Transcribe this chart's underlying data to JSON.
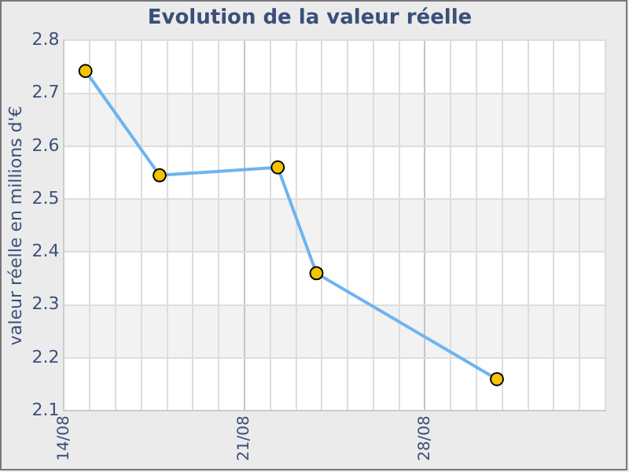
{
  "chart_data": {
    "type": "line",
    "title": "Evolution de la valeur réelle",
    "ylabel": "valeur réelle en millions d'€",
    "x": [
      "--08-14T20:00",
      "--08-17T17:00",
      "--08-22T07:00",
      "--08-23T19:00",
      "--08-30T19:00"
    ],
    "series": [
      {
        "color": "#6eb4f0",
        "values": [
          2.742,
          2.545,
          2.56,
          2.36,
          2.16
        ]
      }
    ],
    "xlim": [
      "--08-14",
      "--09-04"
    ],
    "xticks": [
      {
        "value": "--08-14",
        "label": "14/08"
      },
      {
        "value": "--08-15",
        "label": null
      },
      {
        "value": "--08-16",
        "label": null
      },
      {
        "value": "--08-17",
        "label": null
      },
      {
        "value": "--08-18",
        "label": null
      },
      {
        "value": "--08-19",
        "label": null
      },
      {
        "value": "--08-20",
        "label": null
      },
      {
        "value": "--08-21",
        "label": "21/08"
      },
      {
        "value": "--08-22",
        "label": null
      },
      {
        "value": "--08-23",
        "label": null
      },
      {
        "value": "--08-24",
        "label": null
      },
      {
        "value": "--08-25",
        "label": null
      },
      {
        "value": "--08-26",
        "label": null
      },
      {
        "value": "--08-27",
        "label": null
      },
      {
        "value": "--08-28",
        "label": "28/08"
      },
      {
        "value": "--08-29",
        "label": null
      },
      {
        "value": "--08-30",
        "label": null
      },
      {
        "value": "--08-31",
        "label": null
      },
      {
        "value": "--09-01",
        "label": null
      },
      {
        "value": "--09-02",
        "label": null
      },
      {
        "value": "--09-03",
        "label": null
      },
      {
        "value": "--09-04",
        "label": null
      }
    ],
    "ylim": [
      2.1,
      2.8
    ],
    "yticks": [
      2.1,
      2.2,
      2.3,
      2.4,
      2.5,
      2.6,
      2.7,
      2.8
    ],
    "grid": true,
    "legend": false,
    "marker": "circle",
    "line_style": "solid"
  }
}
